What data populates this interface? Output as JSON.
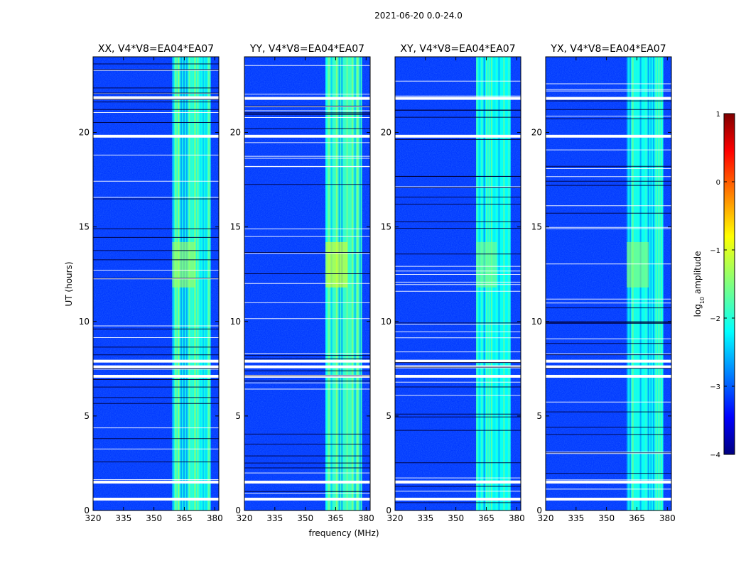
{
  "chart_data": {
    "type": "heatmap",
    "title": "2021-06-20 0.0-24.0",
    "xlabel": "frequency (MHz)",
    "ylabel": "UT (hours)",
    "xlim": [
      320,
      382
    ],
    "ylim": [
      0,
      24
    ],
    "x_ticks": [
      "320",
      "335",
      "350",
      "365",
      "380"
    ],
    "x_tick_values": [
      320,
      335,
      350,
      365,
      380
    ],
    "y_ticks": [
      "0",
      "5",
      "10",
      "15",
      "20"
    ],
    "y_tick_values": [
      0,
      5,
      10,
      15,
      20
    ],
    "panels": [
      {
        "title": "XX, V4*V8=EA04*EA07",
        "signal_band_mhz": [
          359,
          378
        ],
        "peak_log_amp": -1.3
      },
      {
        "title": "YY, V4*V8=EA04*EA07",
        "signal_band_mhz": [
          360,
          378
        ],
        "peak_log_amp": -1.0
      },
      {
        "title": "XY, V4*V8=EA04*EA07",
        "signal_band_mhz": [
          360,
          377
        ],
        "peak_log_amp": -1.5
      },
      {
        "title": "YX, V4*V8=EA04*EA07",
        "signal_band_mhz": [
          360,
          378
        ],
        "peak_log_amp": -1.4
      }
    ],
    "background_log_amp": -3.1,
    "flagged_ut_hours": [
      0.6,
      1.5,
      7.1,
      7.6,
      7.9,
      19.8,
      21.8
    ],
    "colorbar": {
      "label": "log10 amplitude",
      "label_prefix": "log",
      "label_sub": "10",
      "label_suffix": " amplitude",
      "range": [
        -4,
        1
      ],
      "ticks": [
        "1",
        "0",
        "−1",
        "−2",
        "−3",
        "−4"
      ],
      "tick_values": [
        1,
        0,
        -1,
        -2,
        -3,
        -4
      ],
      "colormap": "jet"
    }
  }
}
